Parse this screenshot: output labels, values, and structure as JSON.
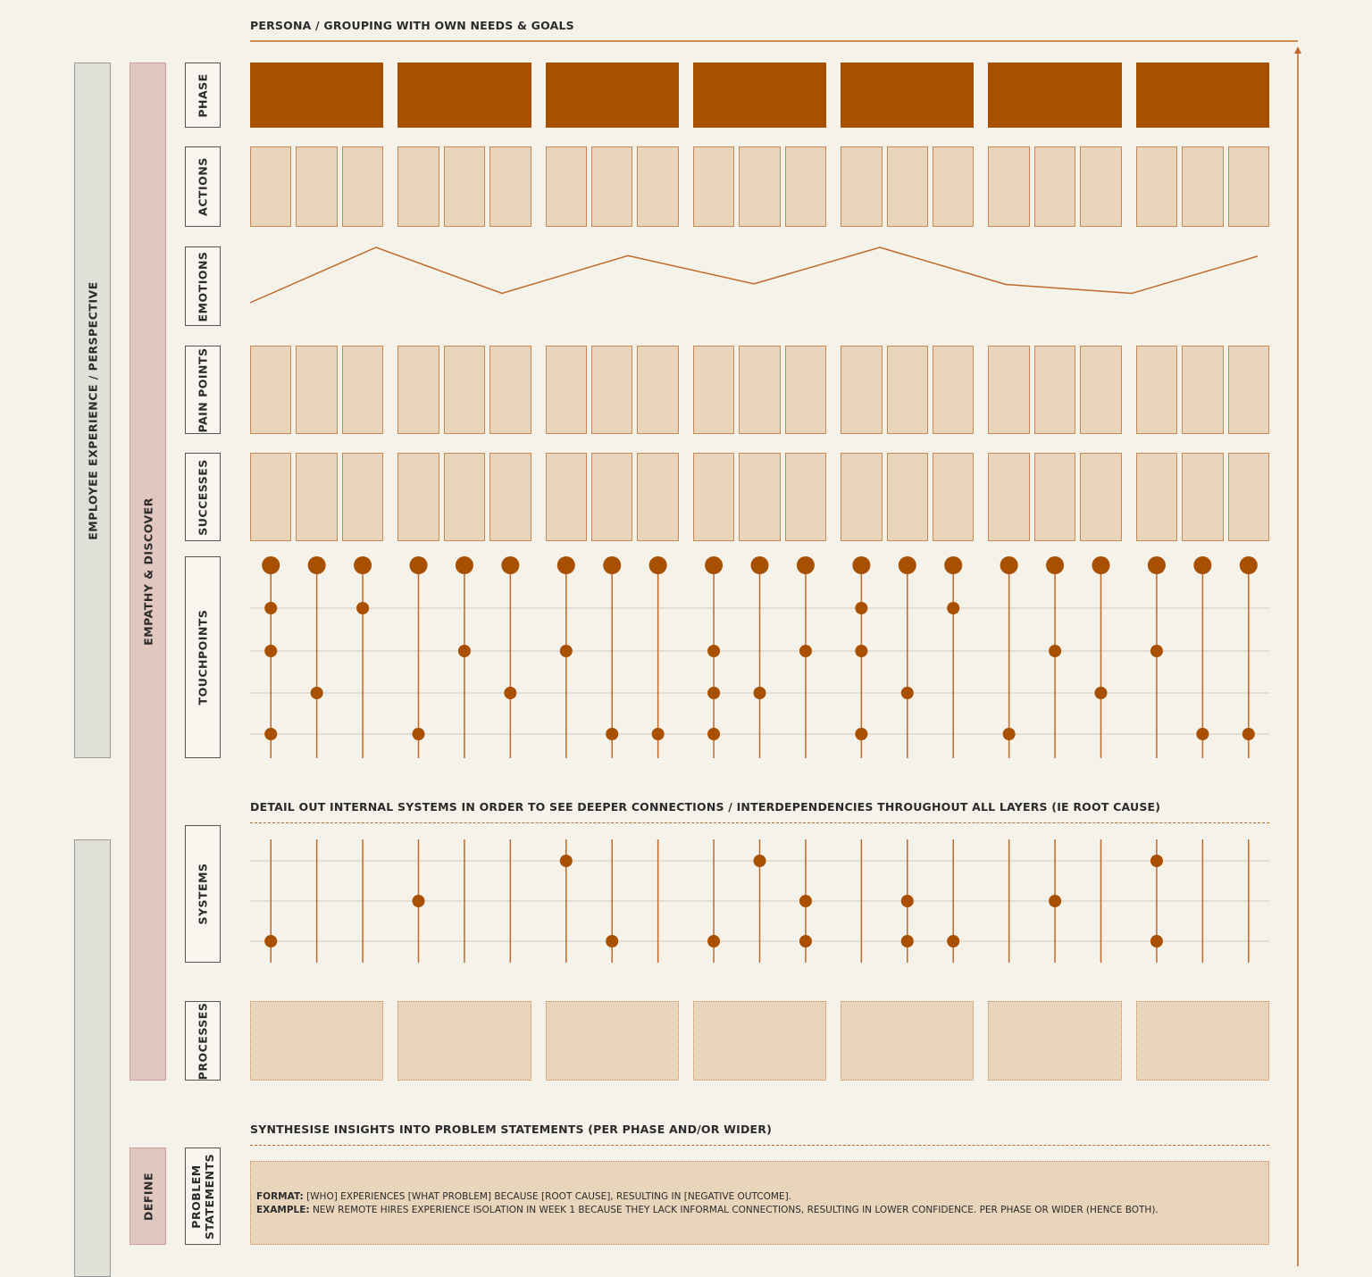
{
  "headings": {
    "persona": "PERSONA / GROUPING WITH OWN NEEDS & GOALS",
    "systems_intro": "DETAIL OUT INTERNAL SYSTEMS IN ORDER TO SEE DEEPER CONNECTIONS / INTERDEPENDENCIES THROUGHOUT ALL LAYERS (IE ROOT CAUSE)",
    "synthesise": "SYNTHESISE INSIGHTS INTO PROBLEM STATEMENTS (PER PHASE AND/OR WIDER)"
  },
  "side_bars": {
    "employee_experience": "EMPLOYEE EXPERIENCE / PERSPECTIVE",
    "empathy_discover": "EMPATHY & DISCOVER",
    "define": "DEFINE"
  },
  "row_labels": {
    "phase": "PHASE",
    "actions": "ACTIONS",
    "emotions": "EMOTIONS",
    "pain_points": "PAIN POINTS",
    "successes": "SUCCESSES",
    "touchpoints": "TOUCHPOINTS",
    "systems": "SYSTEMS",
    "processes": "PROCESSES",
    "problem_statements_1": "PROBLEM",
    "problem_statements_2": "STATEMENTS"
  },
  "problem_statement": {
    "format_label": "FORMAT:",
    "format_text": " [WHO] EXPERIENCES [WHAT PROBLEM] BECAUSE [ROOT CAUSE], RESULTING IN [NEGATIVE OUTCOME].",
    "example_label": "EXAMPLE:",
    "example_text": " NEW REMOTE HIRES EXPERIENCE ISOLATION IN WEEK 1 BECAUSE THEY LACK INFORMAL CONNECTIONS, RESULTING IN LOWER CONFIDENCE. PER PHASE OR WIDER (HENCE BOTH)."
  },
  "colors": {
    "phase": "#a84f00",
    "accent": "#c0692a",
    "cell_fill": "#e8d5bb",
    "cell_border": "#c88855",
    "grid": "#cfcbbf"
  },
  "structure": {
    "phase_count": 7,
    "columns_per_phase": 3
  },
  "emotions_levels": [
    0.0,
    1.0,
    0.17,
    0.85,
    0.34,
    1.0,
    0.33,
    0.17,
    0.84
  ],
  "touchpoints_levels": [
    [
      1,
      2,
      4
    ],
    [
      3
    ],
    [
      1
    ],
    [
      4
    ],
    [
      2
    ],
    [
      3
    ],
    [
      2
    ],
    [
      4
    ],
    [
      4
    ],
    [
      2,
      3,
      4
    ],
    [
      3
    ],
    [
      2
    ],
    [
      1,
      2,
      4
    ],
    [
      3
    ],
    [
      1
    ],
    [
      4
    ],
    [
      2
    ],
    [
      3
    ],
    [
      2
    ],
    [
      4
    ],
    [
      4
    ]
  ],
  "systems_levels": [
    [
      3
    ],
    [],
    [],
    [
      2
    ],
    [],
    [],
    [
      1
    ],
    [
      3
    ],
    [],
    [
      3
    ],
    [
      1
    ],
    [
      2,
      3
    ],
    [],
    [
      2,
      3
    ],
    [
      3
    ],
    [],
    [
      2
    ],
    [],
    [
      1,
      3
    ],
    [],
    []
  ]
}
